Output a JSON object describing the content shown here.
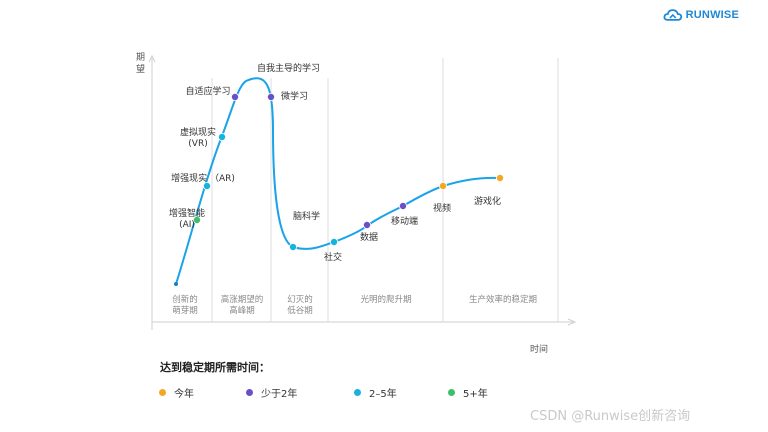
{
  "brand": {
    "name": "RUNWISE",
    "color": "#1e88d6"
  },
  "axes": {
    "y_label": "期\n望",
    "x_label": "时间"
  },
  "phases": [
    {
      "label": "创新的\n萌芽期"
    },
    {
      "label": "高涨期望的\n高峰期"
    },
    {
      "label": "幻灭的\n低谷期"
    },
    {
      "label": "光明的爬升期"
    },
    {
      "label": "生产效率的稳定期"
    }
  ],
  "colors": {
    "curve": "#1aa3e8",
    "this_year": "#f5a623",
    "under_2": "#6a4fc8",
    "two_to_five": "#17b3dc",
    "five_plus": "#3cc06a"
  },
  "points": [
    {
      "label": "增强智能\n(AI)",
      "category": "five_plus"
    },
    {
      "label": "增强现实 （AR)",
      "category": "two_to_five"
    },
    {
      "label": "虚拟现实\n(VR)",
      "category": "two_to_five"
    },
    {
      "label": "自适应学习",
      "category": "under_2"
    },
    {
      "label": "自我主导的学习",
      "category": "none"
    },
    {
      "label": "微学习",
      "category": "under_2"
    },
    {
      "label": "脑科学",
      "category": "two_to_five"
    },
    {
      "label": "社交",
      "category": "two_to_five"
    },
    {
      "label": "数据",
      "category": "under_2"
    },
    {
      "label": "移动端",
      "category": "under_2"
    },
    {
      "label": "视频",
      "category": "this_year"
    },
    {
      "label": "游戏化",
      "category": "this_year"
    }
  ],
  "legend": {
    "title": "达到稳定期所需时间：",
    "items": [
      {
        "label": "今年",
        "category": "this_year"
      },
      {
        "label": "少于2年",
        "category": "under_2"
      },
      {
        "label": "2–5年",
        "category": "two_to_five"
      },
      {
        "label": "5+年",
        "category": "five_plus"
      }
    ]
  },
  "watermark": "CSDN @Runwise创新咨询"
}
